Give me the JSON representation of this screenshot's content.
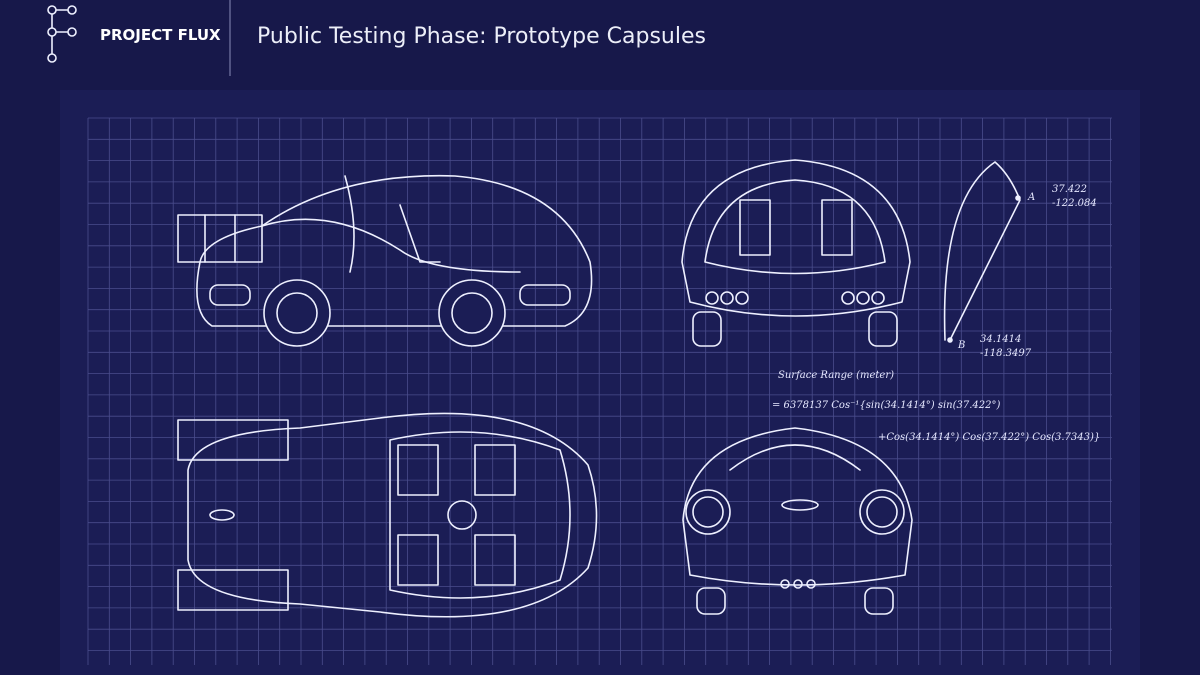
{
  "header": {
    "brand": "PROJECT FLUX",
    "title": "Public Testing Phase: Prototype Capsules"
  },
  "annotations": {
    "point_a": {
      "label": "A",
      "lat": "37.422",
      "lon": "-122.084"
    },
    "point_b": {
      "label": "B",
      "lat": "34.1414",
      "lon": "-118.3497"
    },
    "formula": {
      "heading": "Surface Range (meter)",
      "line1": "= 6378137 Cos⁻¹{sin(34.1414°) sin(37.422°)",
      "line2": "+Cos(34.1414°) Cos(37.422°) Cos(3.7343)}"
    }
  }
}
